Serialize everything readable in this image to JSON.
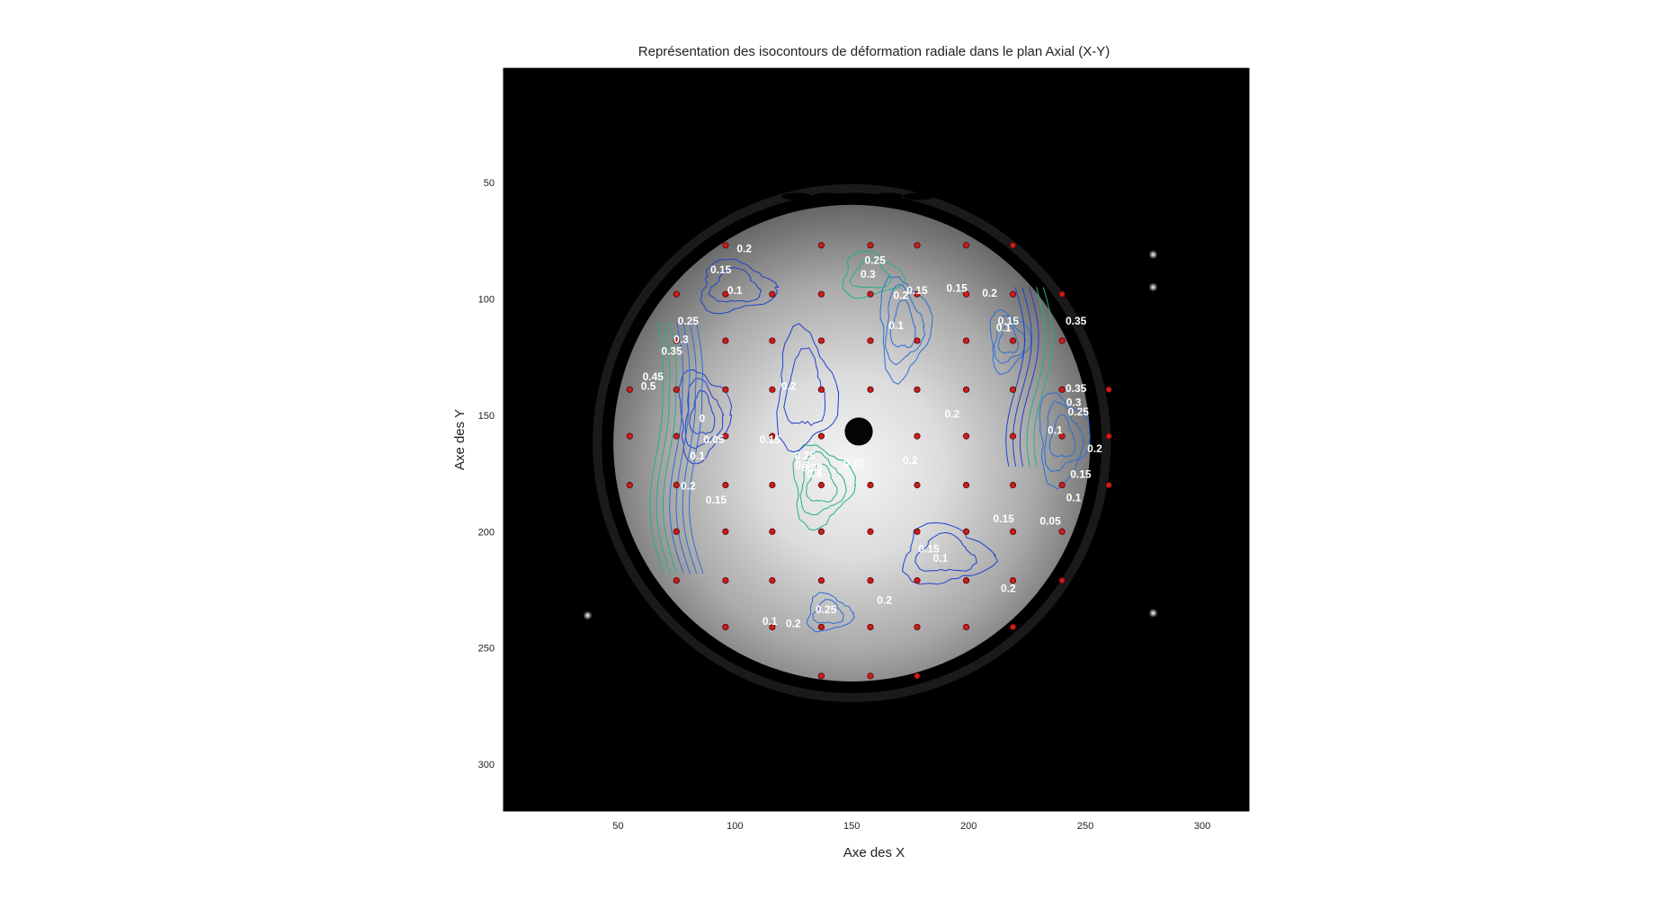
{
  "chart_data": {
    "type": "contour",
    "title": "Représentation des isocontours de déformation radiale dans le plan Axial (X-Y)",
    "xlabel": "Axe des X",
    "ylabel": "Axe des Y",
    "xlim": [
      1,
      320
    ],
    "ylim": [
      1,
      320
    ],
    "y_axis_inverted": true,
    "x_ticks": [
      50,
      100,
      150,
      200,
      250,
      300
    ],
    "y_ticks": [
      50,
      100,
      150,
      200,
      250,
      300
    ],
    "x_tick_labels": [
      "50",
      "100",
      "150",
      "200",
      "250",
      "300"
    ],
    "y_tick_labels": [
      "50",
      "100",
      "150",
      "200",
      "250",
      "300"
    ],
    "background": "grayscale MRI image of spherical phantom",
    "phantom": {
      "center": [
        150,
        162
      ],
      "radius": 102,
      "top_cut_y": 56,
      "hole_center": [
        153,
        157
      ],
      "hole_radius": 6
    },
    "bright_spots": [
      [
        279,
        81
      ],
      [
        279,
        95
      ],
      [
        37,
        236
      ],
      [
        279,
        235
      ]
    ],
    "markers": {
      "color": "#c81e1e",
      "points": [
        [
          96,
          77
        ],
        [
          137,
          77
        ],
        [
          158,
          77
        ],
        [
          178,
          77
        ],
        [
          199,
          77
        ],
        [
          219,
          77
        ],
        [
          75,
          98
        ],
        [
          96,
          98
        ],
        [
          116,
          98
        ],
        [
          137,
          98
        ],
        [
          158,
          98
        ],
        [
          178,
          98
        ],
        [
          199,
          98
        ],
        [
          219,
          98
        ],
        [
          240,
          98
        ],
        [
          75,
          118
        ],
        [
          96,
          118
        ],
        [
          116,
          118
        ],
        [
          137,
          118
        ],
        [
          158,
          118
        ],
        [
          178,
          118
        ],
        [
          199,
          118
        ],
        [
          219,
          118
        ],
        [
          240,
          118
        ],
        [
          55,
          139
        ],
        [
          75,
          139
        ],
        [
          96,
          139
        ],
        [
          116,
          139
        ],
        [
          137,
          139
        ],
        [
          158,
          139
        ],
        [
          178,
          139
        ],
        [
          199,
          139
        ],
        [
          219,
          139
        ],
        [
          240,
          139
        ],
        [
          260,
          139
        ],
        [
          55,
          159
        ],
        [
          75,
          159
        ],
        [
          96,
          159
        ],
        [
          116,
          159
        ],
        [
          137,
          159
        ],
        [
          178,
          159
        ],
        [
          199,
          159
        ],
        [
          219,
          159
        ],
        [
          240,
          159
        ],
        [
          260,
          159
        ],
        [
          55,
          180
        ],
        [
          75,
          180
        ],
        [
          96,
          180
        ],
        [
          116,
          180
        ],
        [
          137,
          180
        ],
        [
          158,
          180
        ],
        [
          178,
          180
        ],
        [
          199,
          180
        ],
        [
          219,
          180
        ],
        [
          240,
          180
        ],
        [
          260,
          180
        ],
        [
          75,
          200
        ],
        [
          96,
          200
        ],
        [
          116,
          200
        ],
        [
          137,
          200
        ],
        [
          158,
          200
        ],
        [
          178,
          200
        ],
        [
          199,
          200
        ],
        [
          219,
          200
        ],
        [
          240,
          200
        ],
        [
          75,
          221
        ],
        [
          96,
          221
        ],
        [
          116,
          221
        ],
        [
          137,
          221
        ],
        [
          158,
          221
        ],
        [
          178,
          221
        ],
        [
          199,
          221
        ],
        [
          219,
          221
        ],
        [
          240,
          221
        ],
        [
          96,
          241
        ],
        [
          116,
          241
        ],
        [
          137,
          241
        ],
        [
          158,
          241
        ],
        [
          178,
          241
        ],
        [
          199,
          241
        ],
        [
          219,
          241
        ],
        [
          137,
          262
        ],
        [
          158,
          262
        ],
        [
          178,
          262
        ]
      ]
    },
    "contour_colors": {
      "low": "#1f3fd0",
      "mid": "#2a6ed8",
      "high": "#23b08a"
    },
    "contour_labels": [
      {
        "text": "0.2",
        "x": 104,
        "y": 80
      },
      {
        "text": "0.15",
        "x": 94,
        "y": 89
      },
      {
        "text": "0.1",
        "x": 100,
        "y": 98
      },
      {
        "text": "0.25",
        "x": 160,
        "y": 85
      },
      {
        "text": "0.3",
        "x": 157,
        "y": 91
      },
      {
        "text": "0.2",
        "x": 171,
        "y": 100
      },
      {
        "text": "0.15",
        "x": 178,
        "y": 98
      },
      {
        "text": "0.15",
        "x": 195,
        "y": 97
      },
      {
        "text": "0.2",
        "x": 209,
        "y": 99
      },
      {
        "text": "0.25",
        "x": 80,
        "y": 111
      },
      {
        "text": "0.3",
        "x": 77,
        "y": 119
      },
      {
        "text": "0.35",
        "x": 73,
        "y": 124
      },
      {
        "text": "0.1",
        "x": 169,
        "y": 113
      },
      {
        "text": "0.15",
        "x": 217,
        "y": 111
      },
      {
        "text": "0.1",
        "x": 215,
        "y": 114
      },
      {
        "text": "0.35",
        "x": 246,
        "y": 111
      },
      {
        "text": "0.45",
        "x": 65,
        "y": 135
      },
      {
        "text": "0.5",
        "x": 63,
        "y": 139
      },
      {
        "text": "0.2",
        "x": 123,
        "y": 139
      },
      {
        "text": "0.35",
        "x": 246,
        "y": 140
      },
      {
        "text": "0.3",
        "x": 245,
        "y": 146
      },
      {
        "text": "0.25",
        "x": 247,
        "y": 150
      },
      {
        "text": "0.2",
        "x": 193,
        "y": 151
      },
      {
        "text": "0",
        "x": 86,
        "y": 153
      },
      {
        "text": "0.1",
        "x": 237,
        "y": 158
      },
      {
        "text": "0.05",
        "x": 91,
        "y": 162
      },
      {
        "text": "0.15",
        "x": 115,
        "y": 162
      },
      {
        "text": "0.2",
        "x": 254,
        "y": 166
      },
      {
        "text": "0.1",
        "x": 84,
        "y": 169
      },
      {
        "text": "0.25",
        "x": 130,
        "y": 169
      },
      {
        "text": "0.3",
        "x": 129,
        "y": 173
      },
      {
        "text": "0.35",
        "x": 133,
        "y": 174
      },
      {
        "text": "0.4",
        "x": 134,
        "y": 177
      },
      {
        "text": "0.15",
        "x": 151,
        "y": 172
      },
      {
        "text": "0.2",
        "x": 175,
        "y": 171
      },
      {
        "text": "0.15",
        "x": 248,
        "y": 177
      },
      {
        "text": "0.2",
        "x": 80,
        "y": 182
      },
      {
        "text": "0.15",
        "x": 92,
        "y": 188
      },
      {
        "text": "0.1",
        "x": 245,
        "y": 187
      },
      {
        "text": "0.15",
        "x": 215,
        "y": 196
      },
      {
        "text": "0.05",
        "x": 235,
        "y": 197
      },
      {
        "text": "0.15",
        "x": 183,
        "y": 209
      },
      {
        "text": "0.1",
        "x": 188,
        "y": 213
      },
      {
        "text": "0.2",
        "x": 217,
        "y": 226
      },
      {
        "text": "0.2",
        "x": 164,
        "y": 231
      },
      {
        "text": "0.25",
        "x": 139,
        "y": 235
      },
      {
        "text": "0.1",
        "x": 115,
        "y": 240
      },
      {
        "text": "0.2",
        "x": 125,
        "y": 241
      }
    ]
  }
}
